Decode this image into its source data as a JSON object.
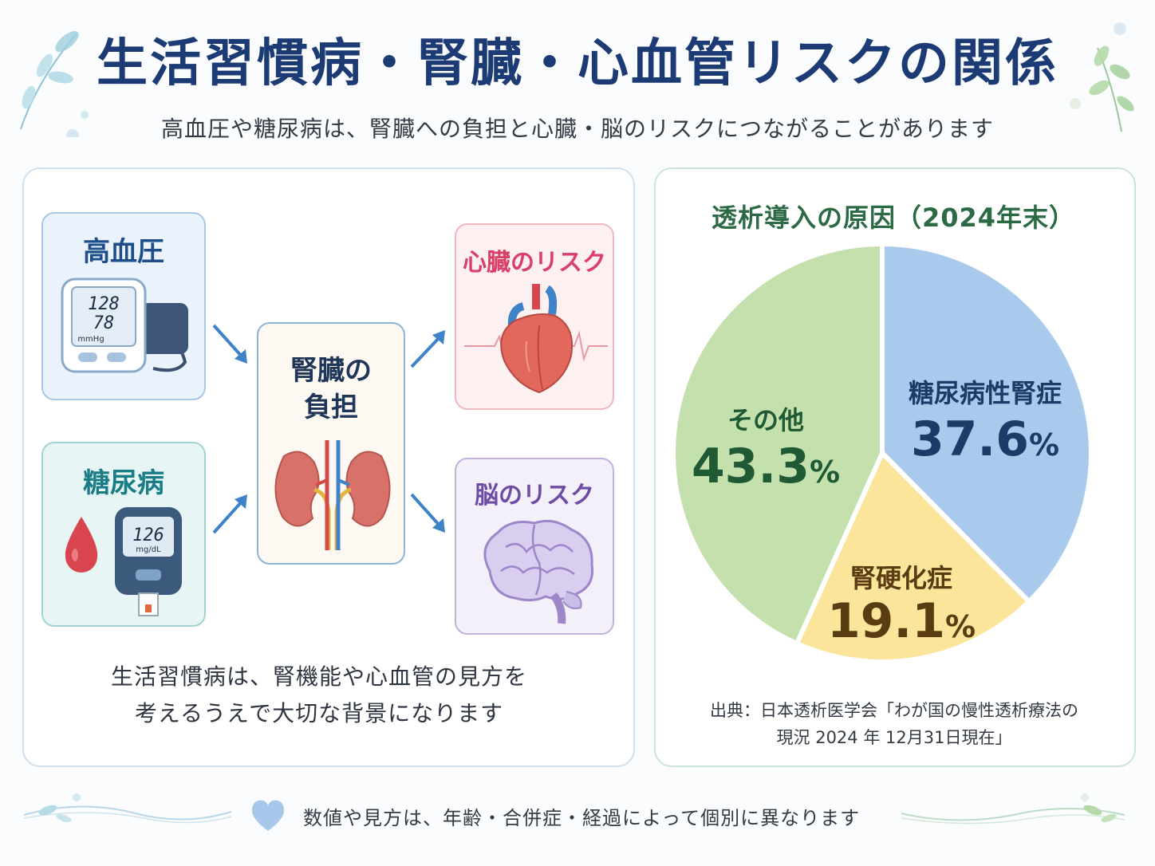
{
  "header": {
    "title": "生活習慣病・腎臓・心血管リスクの関係",
    "subtitle": "高血圧や糖尿病は、腎臓への負担と心臓・脳のリスクにつながることがあります"
  },
  "diagram": {
    "hypertension": {
      "label": "高血圧",
      "systolic": "128",
      "diastolic": "78",
      "unit": "mmHg"
    },
    "diabetes": {
      "label": "糖尿病",
      "glucose": "126",
      "unit": "mg/dL"
    },
    "kidney": {
      "line1": "腎臓の",
      "line2": "負担"
    },
    "heart_risk": {
      "label": "心臓のリスク"
    },
    "brain_risk": {
      "label": "脳のリスク"
    },
    "note_line1": "生活習慣病は、腎機能や心血管の見方を",
    "note_line2": "考えるうえで大切な背景になります"
  },
  "chart_data": {
    "type": "pie",
    "title": "透析導入の原因（2024年末）",
    "slices": [
      {
        "label": "糖尿病性腎症",
        "value": 37.6,
        "display": "37.6",
        "color": "#a9caec",
        "text_color": "#1e3a66"
      },
      {
        "label": "腎硬化症",
        "value": 19.1,
        "display": "19.1",
        "color": "#fbe59a",
        "text_color": "#5a3c12"
      },
      {
        "label": "その他",
        "value": 43.3,
        "display": "43.3",
        "color": "#c3e0ad",
        "text_color": "#1f5a35"
      }
    ],
    "percent_sign": "%"
  },
  "source": {
    "line1": "出典：日本透析医学会「わが国の慢性透析療法の",
    "line2": "現況 2024 年 12月31日現在」"
  },
  "footer": {
    "text": "数値や見方は、年齢・合併症・経過によって個別に異なります"
  }
}
